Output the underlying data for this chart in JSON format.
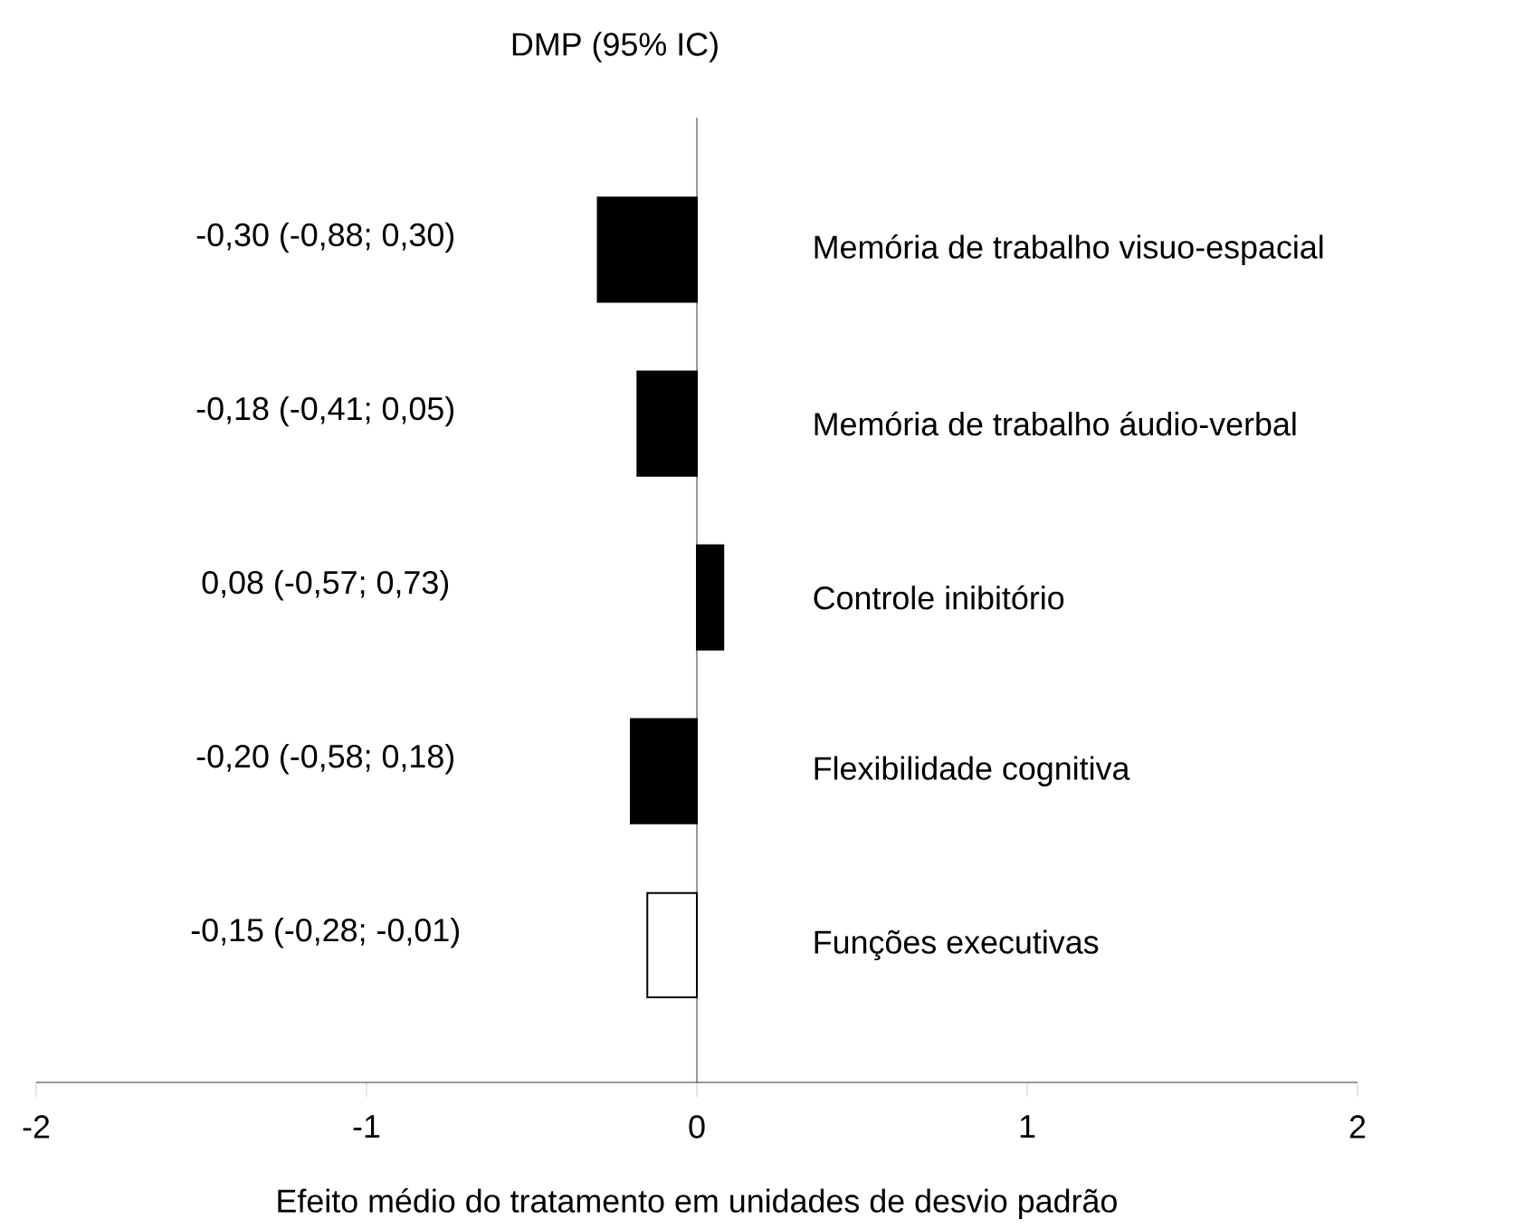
{
  "chart_data": {
    "type": "bar",
    "orientation": "horizontal",
    "title": "DMP (95% IC)",
    "xlabel": "Efeito médio do tratamento em unidades de desvio padrão",
    "categories": [
      "Memória de trabalho visuo-espacial",
      "Memória de trabalho áudio-verbal",
      "Controle inibitório",
      "Flexibilidade cognitiva",
      "Funções executivas"
    ],
    "values": [
      -0.3,
      -0.18,
      0.08,
      -0.2,
      -0.15
    ],
    "colors": [
      "#000000",
      "#000000",
      "#000000",
      "#000000",
      "#ffffff"
    ],
    "value_labels": [
      "-0,30 (-0,88; 0,30)",
      "-0,18 (-0,41; 0,05)",
      "0,08 (-0,57; 0,73)",
      "-0,20 (-0,58; 0,18)",
      "-0,15 (-0,28; -0,01)"
    ],
    "xlim": [
      -2,
      2
    ],
    "xticks": [
      -2,
      -1,
      0,
      1,
      2
    ]
  }
}
